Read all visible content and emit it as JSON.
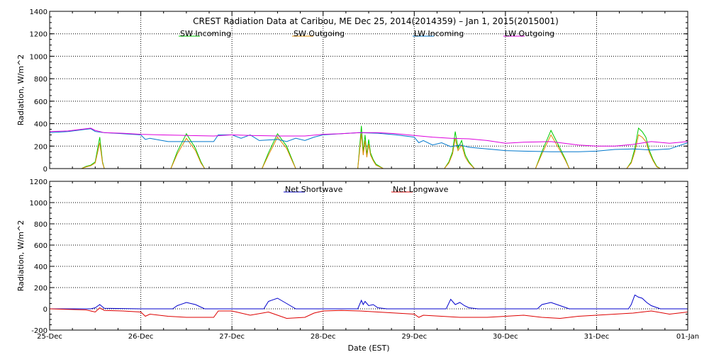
{
  "chart_data": [
    {
      "type": "line",
      "title": "CREST Radiation Data at Caribou, ME   Dec 25, 2014(2014359) – Jan  1, 2015(2015001)",
      "xlabel": "",
      "ylabel": "Radiation, W/m^2",
      "xlim": [
        0,
        7
      ],
      "ylim": [
        0,
        1400
      ],
      "yticks": [
        0,
        200,
        400,
        600,
        800,
        1000,
        1200,
        1400
      ],
      "grid": true,
      "legend": "top",
      "series": [
        {
          "name": "SW Incoming",
          "color": "#00cc00",
          "x": [
            0,
            0.35,
            0.4,
            0.45,
            0.5,
            0.55,
            0.58,
            0.6,
            1.0,
            1.33,
            1.4,
            1.5,
            1.6,
            1.66,
            1.7,
            1.76,
            2.0,
            2.33,
            2.4,
            2.5,
            2.6,
            2.66,
            2.7,
            2.76,
            3.0,
            3.38,
            3.4,
            3.42,
            3.44,
            3.46,
            3.48,
            3.5,
            3.52,
            3.55,
            3.58,
            3.62,
            3.66,
            3.7,
            4.0,
            4.33,
            4.38,
            4.42,
            4.45,
            4.48,
            4.52,
            4.56,
            4.6,
            4.66,
            4.7,
            5.0,
            5.33,
            5.4,
            5.5,
            5.6,
            5.66,
            5.7,
            6.0,
            6.33,
            6.38,
            6.42,
            6.46,
            6.5,
            6.54,
            6.58,
            6.62,
            6.66,
            6.7,
            7.0
          ],
          "values": [
            0,
            0,
            20,
            30,
            60,
            280,
            60,
            0,
            0,
            0,
            150,
            310,
            180,
            60,
            0,
            0,
            0,
            0,
            140,
            310,
            200,
            80,
            0,
            0,
            0,
            0,
            180,
            380,
            150,
            300,
            120,
            260,
            140,
            80,
            40,
            20,
            0,
            0,
            0,
            0,
            60,
            150,
            330,
            180,
            250,
            120,
            60,
            0,
            0,
            0,
            0,
            150,
            340,
            180,
            80,
            0,
            0,
            0,
            60,
            180,
            360,
            330,
            280,
            160,
            80,
            20,
            0,
            0
          ]
        },
        {
          "name": "SW Outgoing",
          "color": "#dd8800",
          "x": [
            0,
            0.35,
            0.4,
            0.45,
            0.5,
            0.55,
            0.58,
            0.6,
            1.0,
            1.33,
            1.4,
            1.5,
            1.6,
            1.66,
            1.7,
            1.76,
            2.0,
            2.33,
            2.4,
            2.5,
            2.6,
            2.66,
            2.7,
            2.76,
            3.0,
            3.38,
            3.4,
            3.42,
            3.44,
            3.46,
            3.48,
            3.5,
            3.52,
            3.55,
            3.58,
            3.62,
            3.66,
            3.7,
            4.0,
            4.33,
            4.38,
            4.42,
            4.45,
            4.48,
            4.52,
            4.56,
            4.6,
            4.66,
            4.7,
            5.0,
            5.33,
            5.4,
            5.5,
            5.6,
            5.66,
            5.7,
            6.0,
            6.33,
            6.38,
            6.42,
            6.46,
            6.5,
            6.54,
            6.58,
            6.62,
            6.66,
            6.7,
            7.0
          ],
          "values": [
            0,
            0,
            15,
            25,
            50,
            230,
            50,
            0,
            0,
            0,
            130,
            270,
            160,
            50,
            0,
            0,
            0,
            0,
            120,
            280,
            180,
            70,
            0,
            0,
            0,
            0,
            150,
            310,
            120,
            250,
            100,
            220,
            120,
            70,
            30,
            15,
            0,
            0,
            0,
            0,
            50,
            130,
            270,
            160,
            210,
            100,
            50,
            0,
            0,
            0,
            0,
            130,
            300,
            160,
            70,
            0,
            0,
            0,
            50,
            150,
            300,
            280,
            240,
            140,
            70,
            15,
            0,
            0
          ]
        },
        {
          "name": "LW Incoming",
          "color": "#0077cc",
          "x": [
            0,
            0.2,
            0.4,
            0.45,
            0.5,
            0.6,
            0.8,
            1.0,
            1.05,
            1.1,
            1.2,
            1.3,
            1.5,
            1.8,
            1.85,
            2.0,
            2.1,
            2.2,
            2.3,
            2.5,
            2.6,
            2.7,
            2.8,
            2.9,
            3.0,
            3.2,
            3.4,
            3.6,
            3.8,
            4.0,
            4.05,
            4.1,
            4.2,
            4.3,
            4.4,
            4.5,
            4.6,
            4.8,
            5.0,
            5.2,
            5.5,
            5.8,
            6.0,
            6.2,
            6.4,
            6.6,
            6.8,
            7.0
          ],
          "values": [
            320,
            330,
            350,
            355,
            330,
            320,
            310,
            300,
            260,
            270,
            255,
            240,
            240,
            240,
            300,
            300,
            270,
            300,
            250,
            260,
            240,
            270,
            250,
            280,
            300,
            310,
            320,
            315,
            300,
            280,
            230,
            250,
            210,
            230,
            195,
            210,
            190,
            175,
            160,
            155,
            150,
            150,
            155,
            170,
            175,
            165,
            175,
            230
          ]
        },
        {
          "name": "LW Outgoing",
          "color": "#dd00dd",
          "x": [
            0,
            0.2,
            0.4,
            0.45,
            0.5,
            0.6,
            0.8,
            1.0,
            1.2,
            1.5,
            1.8,
            2.0,
            2.2,
            2.5,
            2.8,
            3.0,
            3.2,
            3.4,
            3.6,
            3.8,
            4.0,
            4.2,
            4.4,
            4.6,
            4.8,
            5.0,
            5.2,
            5.5,
            5.8,
            6.0,
            6.2,
            6.4,
            6.6,
            6.8,
            7.0
          ],
          "values": [
            330,
            335,
            355,
            360,
            340,
            320,
            315,
            305,
            300,
            295,
            290,
            300,
            295,
            290,
            290,
            305,
            310,
            320,
            320,
            310,
            295,
            280,
            270,
            265,
            250,
            225,
            235,
            240,
            210,
            200,
            200,
            215,
            240,
            225,
            240
          ]
        }
      ]
    },
    {
      "type": "line",
      "title": "",
      "xlabel": "Date (EST)",
      "ylabel": "Radiation, W/m^2",
      "xlim": [
        0,
        7
      ],
      "ylim": [
        -200,
        1200
      ],
      "yticks": [
        -200,
        0,
        200,
        400,
        600,
        800,
        1000,
        1200
      ],
      "categories": [
        "25-Dec",
        "26-Dec",
        "27-Dec",
        "28-Dec",
        "29-Dec",
        "30-Dec",
        "31-Dec",
        "01-Jan"
      ],
      "grid": true,
      "legend": "top",
      "series": [
        {
          "name": "Net Shortwave",
          "color": "#0000cc",
          "x": [
            0,
            0.45,
            0.5,
            0.55,
            0.6,
            1.0,
            1.35,
            1.4,
            1.5,
            1.6,
            1.7,
            2.0,
            2.35,
            2.4,
            2.5,
            2.6,
            2.7,
            3.0,
            3.38,
            3.42,
            3.44,
            3.46,
            3.5,
            3.55,
            3.6,
            3.7,
            4.0,
            4.35,
            4.4,
            4.45,
            4.5,
            4.55,
            4.6,
            4.7,
            5.0,
            5.35,
            5.4,
            5.5,
            5.6,
            5.7,
            6.0,
            6.35,
            6.38,
            6.42,
            6.46,
            6.5,
            6.55,
            6.6,
            6.7,
            7.0
          ],
          "values": [
            0,
            0,
            10,
            40,
            5,
            0,
            0,
            30,
            60,
            40,
            0,
            0,
            0,
            70,
            100,
            50,
            0,
            0,
            0,
            80,
            40,
            70,
            30,
            40,
            10,
            0,
            0,
            0,
            90,
            40,
            60,
            30,
            10,
            0,
            0,
            0,
            40,
            60,
            30,
            0,
            0,
            0,
            40,
            130,
            110,
            100,
            60,
            30,
            0,
            0
          ]
        },
        {
          "name": "Net Longwave",
          "color": "#dd0000",
          "x": [
            0,
            0.2,
            0.4,
            0.5,
            0.55,
            0.6,
            0.8,
            1.0,
            1.05,
            1.1,
            1.3,
            1.5,
            1.8,
            1.85,
            2.0,
            2.2,
            2.4,
            2.6,
            2.8,
            2.9,
            3.0,
            3.2,
            3.4,
            3.6,
            3.8,
            4.0,
            4.05,
            4.1,
            4.3,
            4.5,
            4.8,
            5.0,
            5.2,
            5.4,
            5.6,
            5.8,
            6.0,
            6.2,
            6.4,
            6.6,
            6.8,
            7.0
          ],
          "values": [
            0,
            -5,
            -10,
            -30,
            10,
            -15,
            -20,
            -30,
            -70,
            -50,
            -70,
            -80,
            -80,
            -20,
            -20,
            -60,
            -30,
            -90,
            -80,
            -40,
            -20,
            -15,
            -20,
            -30,
            -40,
            -50,
            -80,
            -60,
            -70,
            -80,
            -80,
            -70,
            -60,
            -80,
            -90,
            -70,
            -60,
            -50,
            -40,
            -20,
            -50,
            -30
          ]
        }
      ]
    }
  ]
}
